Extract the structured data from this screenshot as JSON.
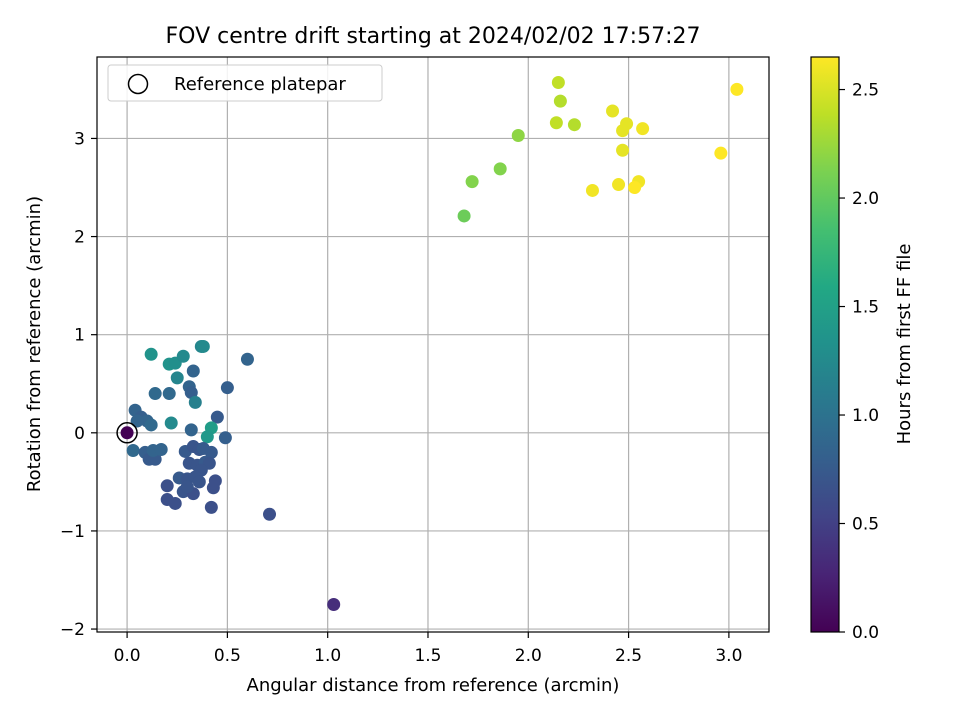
{
  "chart_data": {
    "type": "scatter",
    "title": "FOV centre drift starting at 2024/02/02 17:57:27",
    "xlabel": "Angular distance from reference (arcmin)",
    "ylabel": "Rotation from reference (arcmin)",
    "xlim": [
      -0.15,
      3.2
    ],
    "ylim": [
      -2.03,
      3.83
    ],
    "xticks": [
      0.0,
      0.5,
      1.0,
      1.5,
      2.0,
      2.5,
      3.0
    ],
    "xtick_labels": [
      "0.0",
      "0.5",
      "1.0",
      "1.5",
      "2.0",
      "2.5",
      "3.0"
    ],
    "yticks": [
      -2,
      -1,
      0,
      1,
      2,
      3
    ],
    "ytick_labels": [
      "−2",
      "−1",
      "0",
      "1",
      "2",
      "3"
    ],
    "grid": true,
    "legend": {
      "placement": "top-left",
      "entries": [
        "Reference platepar"
      ]
    },
    "colorbar": {
      "label": "Hours from first FF file",
      "range": [
        0.0,
        2.65
      ],
      "ticks": [
        0.0,
        0.5,
        1.0,
        1.5,
        2.0,
        2.5
      ],
      "tick_labels": [
        "0.0",
        "0.5",
        "1.0",
        "1.5",
        "2.0",
        "2.5"
      ],
      "colormap": "viridis"
    },
    "reference_point": {
      "x": 0.0,
      "y": 0.0
    },
    "points": [
      {
        "x": 0.0,
        "y": 0.0,
        "t": 0.0
      },
      {
        "x": 1.03,
        "y": -1.75,
        "t": 0.35
      },
      {
        "x": 0.12,
        "y": 0.8,
        "t": 1.35
      },
      {
        "x": 0.21,
        "y": 0.7,
        "t": 1.35
      },
      {
        "x": 0.24,
        "y": 0.71,
        "t": 1.3
      },
      {
        "x": 0.28,
        "y": 0.78,
        "t": 1.25
      },
      {
        "x": 0.37,
        "y": 0.88,
        "t": 1.2
      },
      {
        "x": 0.38,
        "y": 0.88,
        "t": 1.25
      },
      {
        "x": 0.6,
        "y": 0.75,
        "t": 0.85
      },
      {
        "x": 0.25,
        "y": 0.56,
        "t": 1.2
      },
      {
        "x": 0.33,
        "y": 0.63,
        "t": 0.85
      },
      {
        "x": 0.31,
        "y": 0.47,
        "t": 0.85
      },
      {
        "x": 0.32,
        "y": 0.41,
        "t": 0.8
      },
      {
        "x": 0.21,
        "y": 0.4,
        "t": 0.9
      },
      {
        "x": 0.14,
        "y": 0.4,
        "t": 0.9
      },
      {
        "x": 0.5,
        "y": 0.46,
        "t": 0.8
      },
      {
        "x": 0.34,
        "y": 0.31,
        "t": 1.15
      },
      {
        "x": 0.45,
        "y": 0.16,
        "t": 0.75
      },
      {
        "x": 0.04,
        "y": 0.23,
        "t": 0.85
      },
      {
        "x": 0.07,
        "y": 0.16,
        "t": 0.8
      },
      {
        "x": 0.1,
        "y": 0.12,
        "t": 0.85
      },
      {
        "x": 0.22,
        "y": 0.1,
        "t": 1.25
      },
      {
        "x": 0.12,
        "y": 0.08,
        "t": 0.9
      },
      {
        "x": 0.05,
        "y": 0.12,
        "t": 0.85
      },
      {
        "x": 0.42,
        "y": 0.05,
        "t": 1.45
      },
      {
        "x": 0.32,
        "y": 0.03,
        "t": 0.85
      },
      {
        "x": 0.4,
        "y": -0.04,
        "t": 1.4
      },
      {
        "x": 0.49,
        "y": -0.05,
        "t": 0.8
      },
      {
        "x": 0.03,
        "y": -0.18,
        "t": 0.9
      },
      {
        "x": 0.09,
        "y": -0.2,
        "t": 0.8
      },
      {
        "x": 0.11,
        "y": -0.27,
        "t": 0.75
      },
      {
        "x": 0.14,
        "y": -0.27,
        "t": 0.75
      },
      {
        "x": 0.13,
        "y": -0.18,
        "t": 0.85
      },
      {
        "x": 0.17,
        "y": -0.17,
        "t": 0.85
      },
      {
        "x": 0.29,
        "y": -0.19,
        "t": 0.75
      },
      {
        "x": 0.33,
        "y": -0.14,
        "t": 0.7
      },
      {
        "x": 0.36,
        "y": -0.17,
        "t": 0.7
      },
      {
        "x": 0.38,
        "y": -0.16,
        "t": 0.75
      },
      {
        "x": 0.42,
        "y": -0.2,
        "t": 0.75
      },
      {
        "x": 0.31,
        "y": -0.31,
        "t": 0.7
      },
      {
        "x": 0.35,
        "y": -0.33,
        "t": 0.7
      },
      {
        "x": 0.39,
        "y": -0.3,
        "t": 0.75
      },
      {
        "x": 0.41,
        "y": -0.31,
        "t": 0.7
      },
      {
        "x": 0.37,
        "y": -0.38,
        "t": 0.7
      },
      {
        "x": 0.26,
        "y": -0.46,
        "t": 0.75
      },
      {
        "x": 0.3,
        "y": -0.47,
        "t": 0.7
      },
      {
        "x": 0.34,
        "y": -0.45,
        "t": 0.7
      },
      {
        "x": 0.36,
        "y": -0.5,
        "t": 0.7
      },
      {
        "x": 0.44,
        "y": -0.49,
        "t": 0.65
      },
      {
        "x": 0.43,
        "y": -0.56,
        "t": 0.65
      },
      {
        "x": 0.2,
        "y": -0.54,
        "t": 0.65
      },
      {
        "x": 0.28,
        "y": -0.6,
        "t": 0.7
      },
      {
        "x": 0.33,
        "y": -0.62,
        "t": 0.65
      },
      {
        "x": 0.3,
        "y": -0.55,
        "t": 0.7
      },
      {
        "x": 0.2,
        "y": -0.68,
        "t": 0.65
      },
      {
        "x": 0.24,
        "y": -0.72,
        "t": 0.65
      },
      {
        "x": 0.42,
        "y": -0.76,
        "t": 0.65
      },
      {
        "x": 0.71,
        "y": -0.83,
        "t": 0.65
      },
      {
        "x": 1.68,
        "y": 2.21,
        "t": 2.05
      },
      {
        "x": 1.72,
        "y": 2.56,
        "t": 2.15
      },
      {
        "x": 1.86,
        "y": 2.69,
        "t": 2.15
      },
      {
        "x": 1.95,
        "y": 3.03,
        "t": 2.2
      },
      {
        "x": 2.15,
        "y": 3.57,
        "t": 2.4
      },
      {
        "x": 2.16,
        "y": 3.38,
        "t": 2.35
      },
      {
        "x": 2.14,
        "y": 3.16,
        "t": 2.4
      },
      {
        "x": 2.23,
        "y": 3.14,
        "t": 2.35
      },
      {
        "x": 2.42,
        "y": 3.28,
        "t": 2.55
      },
      {
        "x": 2.49,
        "y": 3.15,
        "t": 2.55
      },
      {
        "x": 2.47,
        "y": 3.08,
        "t": 2.55
      },
      {
        "x": 2.57,
        "y": 3.1,
        "t": 2.6
      },
      {
        "x": 2.47,
        "y": 2.88,
        "t": 2.55
      },
      {
        "x": 2.32,
        "y": 2.47,
        "t": 2.6
      },
      {
        "x": 2.45,
        "y": 2.53,
        "t": 2.6
      },
      {
        "x": 2.55,
        "y": 2.56,
        "t": 2.6
      },
      {
        "x": 2.53,
        "y": 2.5,
        "t": 2.65
      },
      {
        "x": 2.96,
        "y": 2.85,
        "t": 2.65
      },
      {
        "x": 3.04,
        "y": 3.5,
        "t": 2.65
      }
    ]
  }
}
